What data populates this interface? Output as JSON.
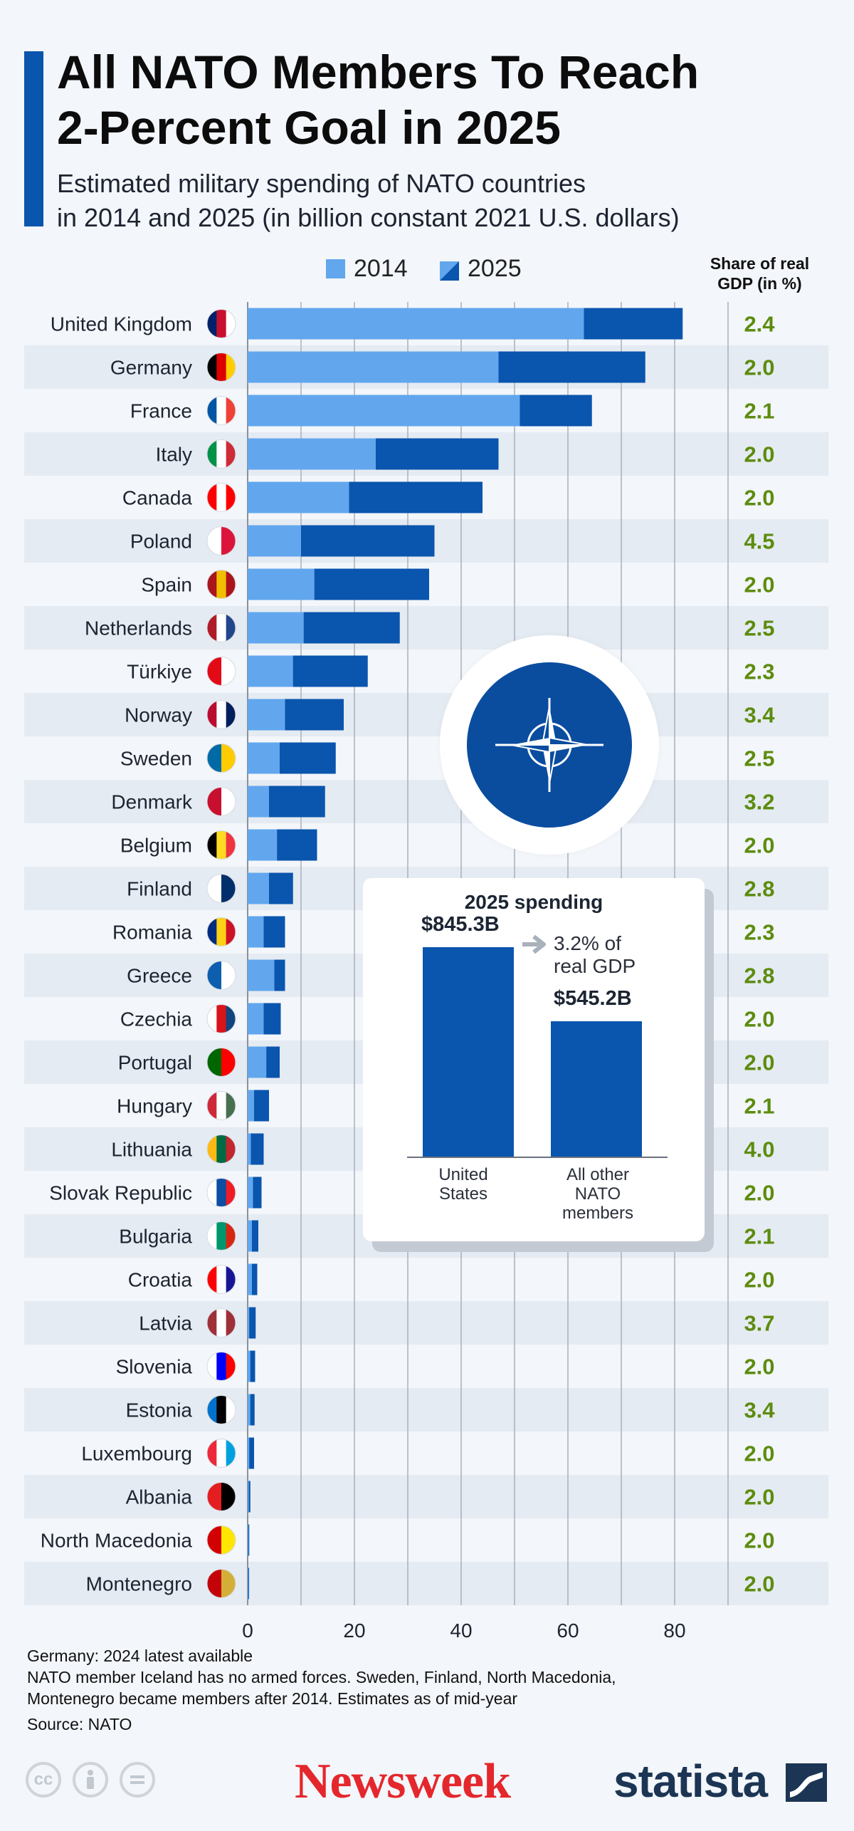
{
  "title_lines": [
    "All NATO Members To Reach",
    "2-Percent Goal in 2025"
  ],
  "subtitle_lines": [
    "Estimated military spending of NATO countries",
    "in 2014 and 2025 (in billion constant 2021 U.S. dollars)"
  ],
  "legend": [
    {
      "label": "2014",
      "color": "#62a7ee"
    },
    {
      "label": "2025",
      "color": "#0a55ad"
    }
  ],
  "gdp_header_lines": [
    "Share of real",
    "GDP (in %)"
  ],
  "colors": {
    "bar_2014": "#62a7ee",
    "bar_2025": "#0a55ad",
    "gdp_text": "#5d8c0f",
    "stripe": "#e5ebf2",
    "grid": "#a9b0ba",
    "accent": "#0a55ad"
  },
  "chart_data": {
    "type": "bar",
    "orientation": "horizontal",
    "stacked": "overlay",
    "categories": [
      "United Kingdom",
      "Germany",
      "France",
      "Italy",
      "Canada",
      "Poland",
      "Spain",
      "Netherlands",
      "Türkiye",
      "Norway",
      "Sweden",
      "Denmark",
      "Belgium",
      "Finland",
      "Romania",
      "Greece",
      "Czechia",
      "Portugal",
      "Hungary",
      "Lithuania",
      "Slovak Republic",
      "Bulgaria",
      "Croatia",
      "Latvia",
      "Slovenia",
      "Estonia",
      "Luxembourg",
      "Albania",
      "North Macedonia",
      "Montenegro"
    ],
    "series": [
      {
        "name": "2014",
        "values": [
          63,
          47,
          51,
          24,
          19,
          10,
          12.5,
          10.5,
          8.5,
          7,
          6,
          4,
          5.5,
          4,
          3,
          5,
          3,
          3.5,
          1.2,
          0.6,
          1,
          0.8,
          0.8,
          0.3,
          0.5,
          0.5,
          0.3,
          0.2,
          0.1,
          0.1
        ]
      },
      {
        "name": "2025",
        "values": [
          81.5,
          74.5,
          64.5,
          47,
          44,
          35,
          34,
          28.5,
          22.5,
          18,
          16.5,
          14.5,
          13,
          8.5,
          7,
          7,
          6.2,
          6,
          4,
          3,
          2.6,
          2,
          1.8,
          1.5,
          1.4,
          1.3,
          1.2,
          0.5,
          0.3,
          0.2
        ]
      }
    ],
    "gdp_share": [
      "2.4",
      "2.0",
      "2.1",
      "2.0",
      "2.0",
      "4.5",
      "2.0",
      "2.5",
      "2.3",
      "3.4",
      "2.5",
      "3.2",
      "2.0",
      "2.8",
      "2.3",
      "2.8",
      "2.0",
      "2.0",
      "2.1",
      "4.0",
      "2.0",
      "2.1",
      "2.0",
      "3.7",
      "2.0",
      "3.4",
      "2.0",
      "2.0",
      "2.0",
      "2.0"
    ],
    "xlim": [
      0,
      90
    ],
    "xticks": [
      0,
      20,
      40,
      60,
      80
    ],
    "grid": true,
    "legend_position": "top-center"
  },
  "inset": {
    "title": "2025 spending",
    "chart_data": {
      "type": "bar",
      "categories": [
        "United States",
        "All other NATO members"
      ],
      "values": [
        845.3,
        545.2
      ],
      "value_labels": [
        "$845.3B",
        "$545.2B"
      ]
    },
    "category_lines": [
      [
        "United",
        "States"
      ],
      [
        "All other",
        "NATO",
        "members"
      ]
    ],
    "annotation_lines": [
      "3.2% of",
      "real GDP"
    ]
  },
  "footnotes": [
    "Germany: 2024 latest available",
    "NATO member Iceland has no armed forces. Sweden, Finland, North Macedonia,",
    "Montenegro became members after 2014. Estimates as of mid-year"
  ],
  "source": "Source: NATO",
  "brands": {
    "newsweek": "Newsweek",
    "statista": "statista"
  },
  "license_icons": [
    "cc-icon",
    "attribution-icon",
    "no-derivatives-icon"
  ]
}
